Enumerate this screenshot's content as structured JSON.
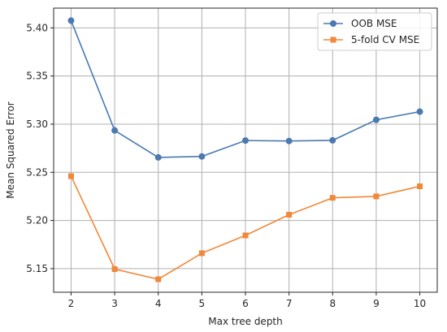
{
  "chart_data": {
    "type": "line",
    "title": "",
    "xlabel": "Max tree depth",
    "ylabel": "Mean Squared Error",
    "x": [
      2,
      3,
      4,
      5,
      6,
      7,
      8,
      9,
      10
    ],
    "xticks": [
      "2",
      "3",
      "4",
      "5",
      "6",
      "7",
      "8",
      "9",
      "10"
    ],
    "yticks": [
      "5.15",
      "5.20",
      "5.25",
      "5.30",
      "5.35",
      "5.40"
    ],
    "xlim": [
      1.6,
      10.4
    ],
    "ylim": [
      5.1255,
      5.4205
    ],
    "grid": true,
    "legend_position": "top-right",
    "series": [
      {
        "name": "OOB MSE",
        "marker": "circle",
        "color": "#4a7ab0",
        "values": [
          5.4075,
          5.2935,
          5.2655,
          5.2665,
          5.283,
          5.2825,
          5.2832,
          5.3045,
          5.313
        ]
      },
      {
        "name": "5-fold CV MSE",
        "marker": "square",
        "color": "#f0883a",
        "values": [
          5.246,
          5.1495,
          5.139,
          5.166,
          5.1845,
          5.206,
          5.2235,
          5.225,
          5.2355
        ]
      }
    ]
  }
}
